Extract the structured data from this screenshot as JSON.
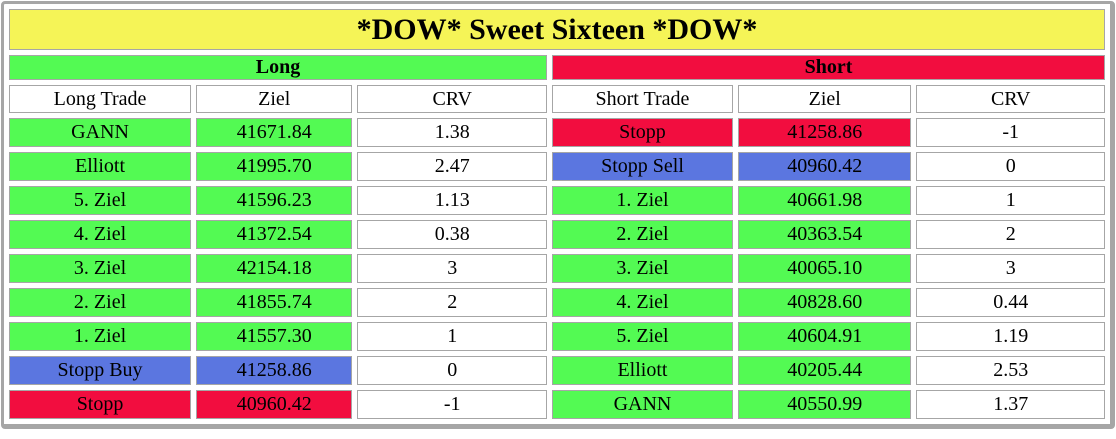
{
  "title": "*DOW* Sweet Sixteen *DOW*",
  "colors": {
    "yellow": "#f5f457",
    "green": "#53fa53",
    "red": "#f20d3f",
    "blue": "#5b76e0",
    "white": "#ffffff",
    "cell_border": "#a6a6a6",
    "text": "#000000"
  },
  "long": {
    "header": "Long",
    "columns": [
      "Long Trade",
      "Ziel",
      "CRV"
    ],
    "rows": [
      {
        "label": "GANN",
        "ziel": "41671.84",
        "crv": "1.38",
        "color": "green"
      },
      {
        "label": "Elliott",
        "ziel": "41995.70",
        "crv": "2.47",
        "color": "green"
      },
      {
        "label": "5. Ziel",
        "ziel": "41596.23",
        "crv": "1.13",
        "color": "green"
      },
      {
        "label": "4. Ziel",
        "ziel": "41372.54",
        "crv": "0.38",
        "color": "green"
      },
      {
        "label": "3. Ziel",
        "ziel": "42154.18",
        "crv": "3",
        "color": "green"
      },
      {
        "label": "2. Ziel",
        "ziel": "41855.74",
        "crv": "2",
        "color": "green"
      },
      {
        "label": "1. Ziel",
        "ziel": "41557.30",
        "crv": "1",
        "color": "green"
      },
      {
        "label": "Stopp Buy",
        "ziel": "41258.86",
        "crv": "0",
        "color": "blue"
      },
      {
        "label": "Stopp",
        "ziel": "40960.42",
        "crv": "-1",
        "color": "red"
      }
    ]
  },
  "short": {
    "header": "Short",
    "columns": [
      "Short Trade",
      "Ziel",
      "CRV"
    ],
    "rows": [
      {
        "label": "Stopp",
        "ziel": "41258.86",
        "crv": "-1",
        "color": "red"
      },
      {
        "label": "Stopp Sell",
        "ziel": "40960.42",
        "crv": "0",
        "color": "blue"
      },
      {
        "label": "1. Ziel",
        "ziel": "40661.98",
        "crv": "1",
        "color": "green"
      },
      {
        "label": "2. Ziel",
        "ziel": "40363.54",
        "crv": "2",
        "color": "green"
      },
      {
        "label": "3. Ziel",
        "ziel": "40065.10",
        "crv": "3",
        "color": "green"
      },
      {
        "label": "4. Ziel",
        "ziel": "40828.60",
        "crv": "0.44",
        "color": "green"
      },
      {
        "label": "5. Ziel",
        "ziel": "40604.91",
        "crv": "1.19",
        "color": "green"
      },
      {
        "label": "Elliott",
        "ziel": "40205.44",
        "crv": "2.53",
        "color": "green"
      },
      {
        "label": "GANN",
        "ziel": "40550.99",
        "crv": "1.37",
        "color": "green"
      }
    ]
  }
}
